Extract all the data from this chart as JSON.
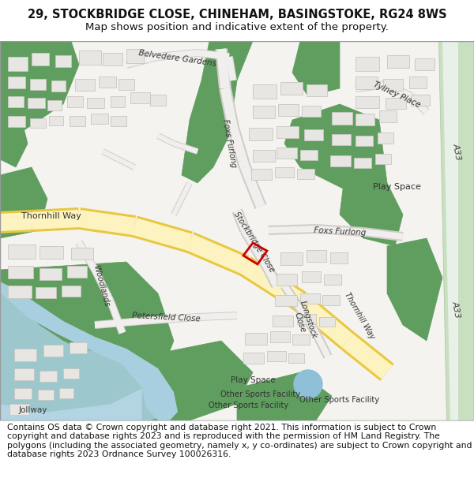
{
  "title_line1": "29, STOCKBRIDGE CLOSE, CHINEHAM, BASINGSTOKE, RG24 8WS",
  "title_line2": "Map shows position and indicative extent of the property.",
  "footer_text": "Contains OS data © Crown copyright and database right 2021. This information is subject to Crown copyright and database rights 2023 and is reproduced with the permission of HM Land Registry. The polygons (including the associated geometry, namely x, y co-ordinates) are subject to Crown copyright and database rights 2023 Ordnance Survey 100026316.",
  "title_fontsize": 10.5,
  "title2_fontsize": 9.5,
  "footer_fontsize": 7.8,
  "fig_width": 6.0,
  "fig_height": 6.25,
  "dpi": 100,
  "map_bg_color": "#f5f3f0",
  "building_fill": "#e8e6e2",
  "building_edge": "#c8c6c2",
  "road_yellow_fill": "#fdf3c0",
  "road_yellow_edge": "#e8c840",
  "road_white_fill": "#f0efed",
  "road_white_edge": "#d0cdc8",
  "green_dark": "#5f9e5f",
  "green_light": "#c8dfc8",
  "a33_green_fill": "#c8dfc0",
  "a33_green_edge": "#a8c8a0",
  "blue_water": "#a8cfe0",
  "blue_pond": "#90c0d8",
  "red_plot": "#cc0000",
  "title_bg": "#ffffff",
  "footer_bg": "#ffffff",
  "text_dark": "#333333"
}
